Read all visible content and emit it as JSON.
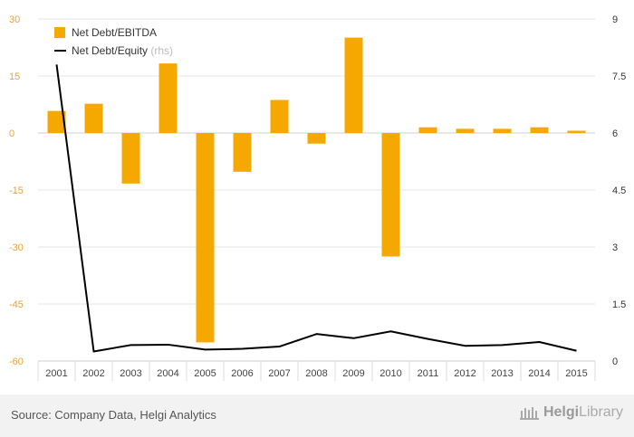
{
  "chart_data": {
    "type": "bar",
    "categories": [
      "2001",
      "2002",
      "2003",
      "2004",
      "2005",
      "2006",
      "2007",
      "2008",
      "2009",
      "2010",
      "2011",
      "2012",
      "2013",
      "2014",
      "2015"
    ],
    "series": [
      {
        "name": "Net Debt/EBITDA",
        "type": "bar",
        "axis": "left",
        "color": "#f5a800",
        "values": [
          5.8,
          7.7,
          -13.3,
          18.3,
          -55.1,
          -10.2,
          8.7,
          -2.8,
          25.1,
          -32.5,
          1.5,
          1.1,
          1.1,
          1.5,
          0.6
        ]
      },
      {
        "name": "Net Debt/Equity",
        "name_suffix": "(rhs)",
        "type": "line",
        "axis": "right",
        "color": "#000000",
        "values": [
          7.8,
          0.25,
          0.42,
          0.43,
          0.3,
          0.32,
          0.38,
          0.71,
          0.6,
          0.78,
          0.58,
          0.4,
          0.42,
          0.5,
          0.27
        ]
      }
    ],
    "ylim_left": [
      -60,
      30
    ],
    "yticks_left": [
      30,
      15,
      0,
      -15,
      -30,
      -45,
      -60
    ],
    "ylim_right": [
      0,
      9
    ],
    "yticks_right": [
      9,
      7.5,
      6,
      4.5,
      3,
      1.5,
      0
    ],
    "grid": true,
    "legend": "top-left"
  },
  "footer": {
    "source": "Source: Company Data, Helgi Analytics",
    "brand_prefix": "Helgi",
    "brand_suffix": "Library"
  }
}
